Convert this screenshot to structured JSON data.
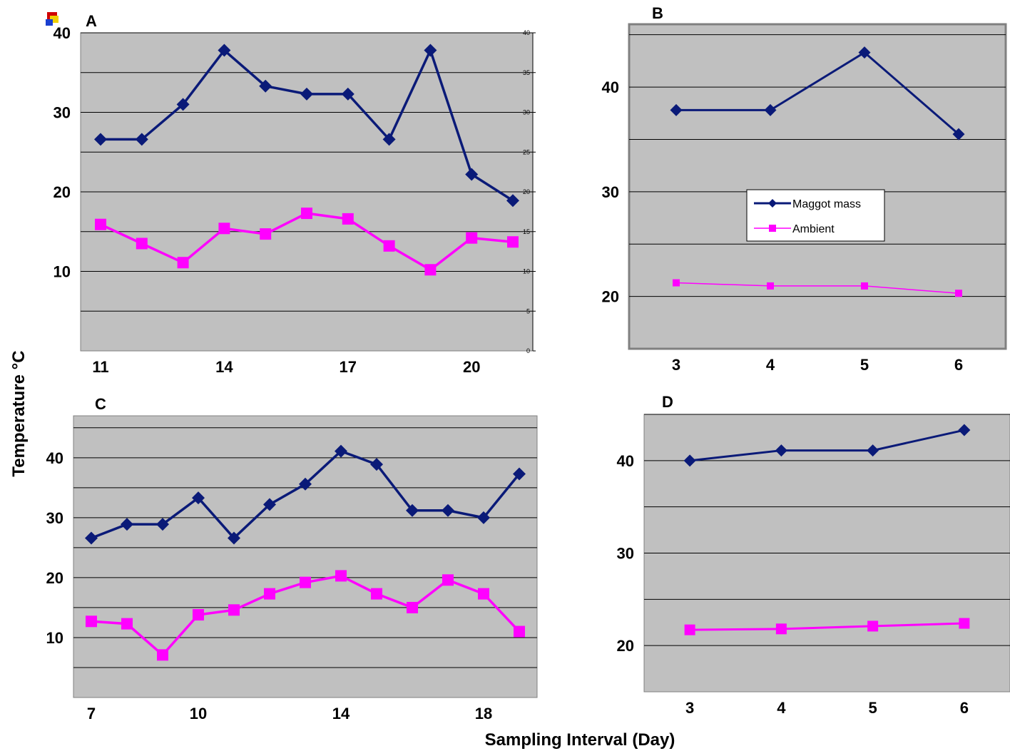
{
  "figure": {
    "ylabel": "Temperature °C",
    "xlabel": "Sampling Interval (Day)"
  },
  "colors": {
    "maggot_mass": "#0a1a78",
    "ambient": "#ff00ff",
    "plot_bg": "#c0c0c0",
    "grid": "#000000"
  },
  "chart_data": [
    {
      "panel": "A",
      "type": "line",
      "xlabel": "",
      "ylabel": "Temperature °C",
      "ylim": [
        0,
        40
      ],
      "yticks": [
        10,
        20,
        30,
        40
      ],
      "right_axis_ticks": [
        0,
        5,
        10,
        15,
        20,
        25,
        30,
        35,
        40
      ],
      "xlim": [
        11,
        21
      ],
      "xticks": [
        11,
        14,
        17,
        20
      ],
      "grid": true,
      "series": [
        {
          "key": "maggot_mass",
          "x": [
            11,
            12,
            13,
            14,
            15,
            16,
            17,
            18,
            19,
            20,
            21
          ],
          "values": [
            26.6,
            26.6,
            31,
            37.8,
            33.3,
            32.3,
            32.3,
            26.6,
            37.8,
            22.2,
            18.9
          ]
        },
        {
          "key": "ambient",
          "x": [
            11,
            12,
            13,
            14,
            15,
            16,
            17,
            18,
            19,
            20,
            21
          ],
          "values": [
            15.9,
            13.5,
            11.1,
            15.4,
            14.7,
            17.3,
            16.6,
            13.2,
            10.2,
            14.2,
            13.7
          ]
        }
      ]
    },
    {
      "panel": "B",
      "type": "line",
      "ylim": [
        15,
        46
      ],
      "yticks": [
        20,
        30,
        40
      ],
      "xlim": [
        2.5,
        6.5
      ],
      "xticks": [
        3,
        4,
        5,
        6
      ],
      "grid": true,
      "legend": {
        "placement": "center",
        "entries": [
          {
            "key": "maggot_mass",
            "label": "Maggot mass"
          },
          {
            "key": "ambient",
            "label": "Ambient"
          }
        ]
      },
      "series": [
        {
          "key": "maggot_mass",
          "name": "Maggot mass",
          "x": [
            3,
            4,
            5,
            6
          ],
          "values": [
            37.8,
            37.8,
            43.3,
            35.5
          ]
        },
        {
          "key": "ambient",
          "name": "Ambient",
          "x": [
            3,
            4,
            5,
            6
          ],
          "values": [
            21.3,
            21,
            21,
            20.3
          ]
        }
      ]
    },
    {
      "panel": "C",
      "type": "line",
      "ylim": [
        0,
        47
      ],
      "yticks": [
        10,
        20,
        30,
        40
      ],
      "xlim": [
        6.5,
        19.5
      ],
      "xticks": [
        7,
        10,
        14,
        18
      ],
      "grid": true,
      "series": [
        {
          "key": "maggot_mass",
          "x": [
            7,
            8,
            9,
            10,
            11,
            12,
            13,
            14,
            15,
            16,
            17,
            18,
            19
          ],
          "values": [
            26.6,
            28.9,
            28.9,
            33.3,
            26.6,
            32.2,
            35.6,
            41.1,
            38.9,
            31.2,
            31.2,
            30,
            37.3
          ]
        },
        {
          "key": "ambient",
          "x": [
            7,
            8,
            9,
            10,
            11,
            12,
            13,
            14,
            15,
            16,
            17,
            18,
            19
          ],
          "values": [
            12.7,
            12.3,
            7.1,
            13.8,
            14.6,
            17.3,
            19.2,
            20.3,
            17.3,
            15,
            19.6,
            17.3,
            11
          ]
        }
      ]
    },
    {
      "panel": "D",
      "type": "line",
      "ylim": [
        15,
        45
      ],
      "yticks": [
        20,
        30,
        40
      ],
      "xlim": [
        2.5,
        6.5
      ],
      "xticks": [
        3,
        4,
        5,
        6
      ],
      "grid": true,
      "series": [
        {
          "key": "maggot_mass",
          "x": [
            3,
            4,
            5,
            6
          ],
          "values": [
            40,
            41.1,
            41.1,
            43.3
          ]
        },
        {
          "key": "ambient",
          "x": [
            3,
            4,
            5,
            6
          ],
          "values": [
            21.7,
            21.8,
            22.1,
            22.4
          ]
        }
      ]
    }
  ]
}
